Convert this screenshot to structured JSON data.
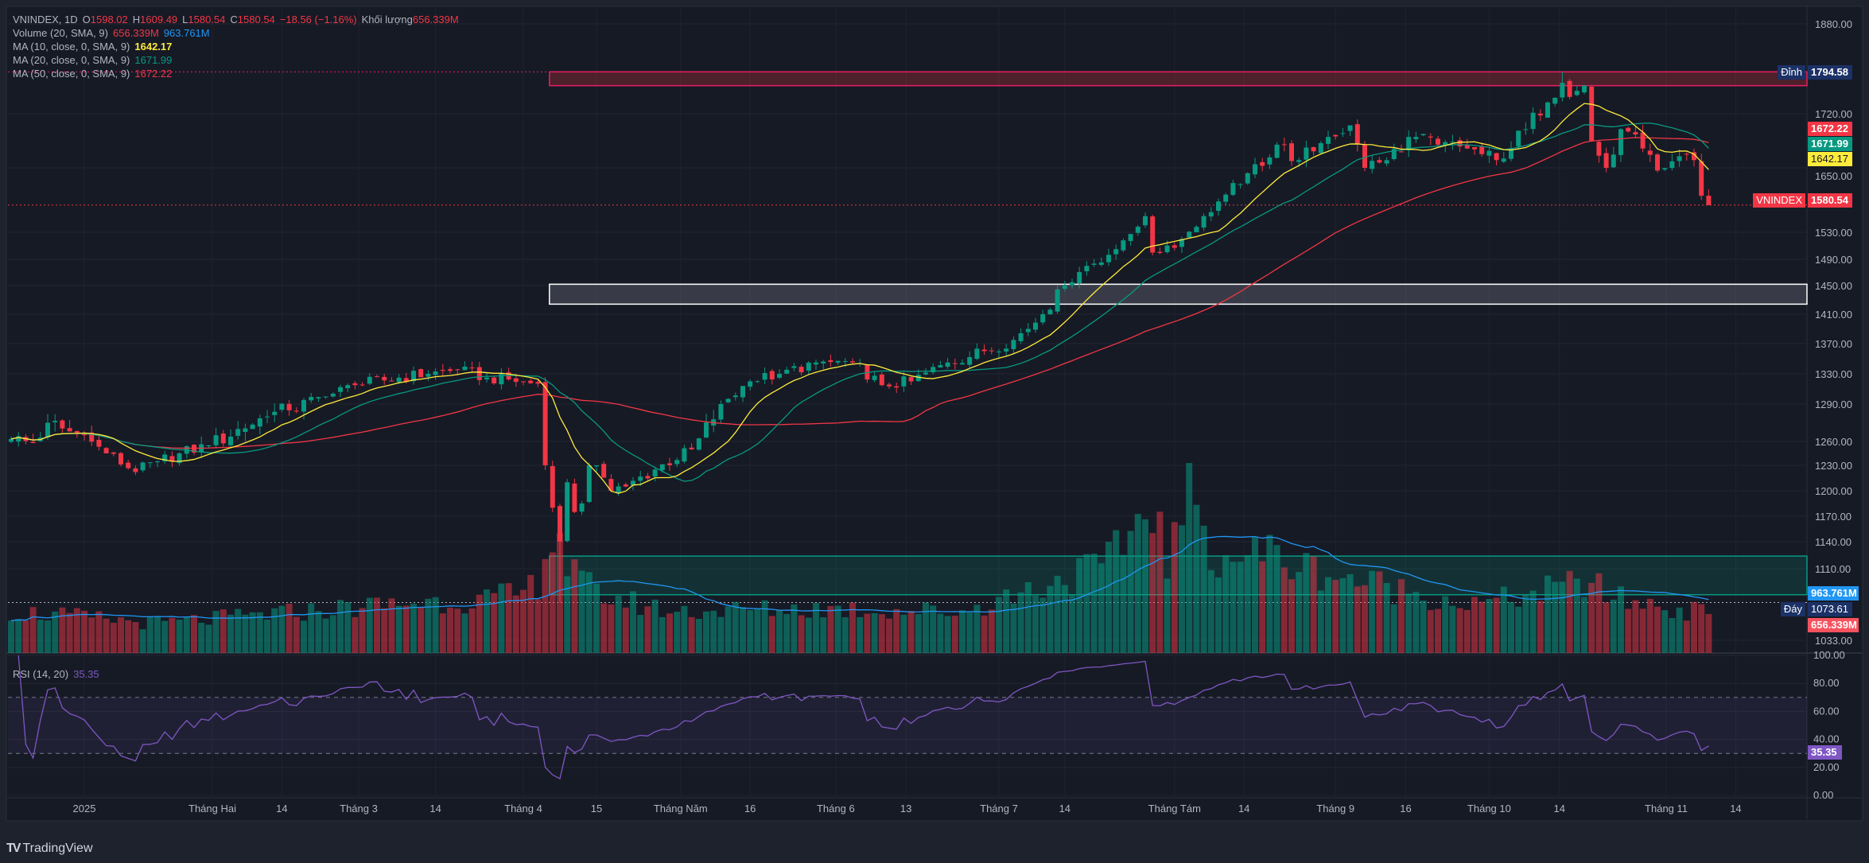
{
  "legend": {
    "symbol": "VNINDEX, 1D",
    "o_label": "O",
    "open": "1598.02",
    "h_label": "H",
    "high": "1609.49",
    "l_label": "L",
    "low": "1580.54",
    "c_label": "C",
    "close": "1580.54",
    "change": "−18.56 (−1.16%)",
    "volume_label": "Khối lượng",
    "volume": "656.339M",
    "vol_ind": "Volume (20, SMA, 9)",
    "vol_val": "656.339M",
    "vol_sma": "963.761M",
    "ma10": "MA (10, close, 0, SMA, 9)",
    "ma10_val": "1642.17",
    "ma20": "MA (20, close, 0, SMA, 9)",
    "ma20_val": "1671.99",
    "ma50": "MA (50, close, 0, SMA, 9)",
    "ma50_val": "1672.22",
    "rsi": "RSI (14, 20)",
    "rsi_val": "35.35"
  },
  "price_labels": {
    "peak_tag": "Đỉnh",
    "peak": "1794.58",
    "ma50": "1672.22",
    "ma20": "1671.99",
    "ma10": "1642.17",
    "symbol_tag": "VNINDEX",
    "last": "1580.54",
    "vol_sma": "963.761M",
    "bottom_tag": "Đáy",
    "bottom": "1073.61",
    "vol": "656.339M",
    "rsi": "35.35"
  },
  "colors": {
    "up": "#089981",
    "down": "#f23645",
    "ma10": "#ffeb3b",
    "ma20": "#089981",
    "ma50": "#f23645",
    "vol_sma": "#2196f3",
    "rsi": "#7e57c2"
  },
  "brand": "TradingView",
  "chart_data": {
    "type": "candlestick",
    "title": "VNINDEX, 1D",
    "price_ticks": [
      "1880.00",
      "1720.00",
      "1650.00",
      "1530.00",
      "1490.00",
      "1450.00",
      "1410.00",
      "1370.00",
      "1330.00",
      "1290.00",
      "1260.00",
      "1230.00",
      "1200.00",
      "1170.00",
      "1140.00",
      "1110.00",
      "1033.00"
    ],
    "rsi_ticks": [
      "100.00",
      "80.00",
      "60.00",
      "40.00",
      "20.00",
      "0.00"
    ],
    "rsi_bands": [
      70,
      30
    ],
    "x_labels": [
      {
        "label": "2025",
        "bar": 10
      },
      {
        "label": "Tháng Hai",
        "bar": 27.5
      },
      {
        "label": "14",
        "bar": 37
      },
      {
        "label": "Tháng 3",
        "bar": 47.5
      },
      {
        "label": "14",
        "bar": 58
      },
      {
        "label": "Tháng 4",
        "bar": 70
      },
      {
        "label": "15",
        "bar": 80
      },
      {
        "label": "Tháng Năm",
        "bar": 91.5
      },
      {
        "label": "16",
        "bar": 101
      },
      {
        "label": "Tháng 6",
        "bar": 112.7
      },
      {
        "label": "13",
        "bar": 122.3
      },
      {
        "label": "Tháng 7",
        "bar": 135
      },
      {
        "label": "14",
        "bar": 144
      },
      {
        "label": "Tháng Tám",
        "bar": 159
      },
      {
        "label": "14",
        "bar": 168.5
      },
      {
        "label": "Tháng 9",
        "bar": 181
      },
      {
        "label": "16",
        "bar": 190.6
      },
      {
        "label": "Tháng 10",
        "bar": 202
      },
      {
        "label": "14",
        "bar": 211.6
      },
      {
        "label": "Tháng 11",
        "bar": 226.2
      },
      {
        "label": "14",
        "bar": 235.7
      }
    ],
    "bar_count": 233,
    "close_waypoints": [
      [
        0,
        1262
      ],
      [
        3,
        1258
      ],
      [
        5,
        1275
      ],
      [
        8,
        1268
      ],
      [
        10,
        1265
      ],
      [
        13,
        1245
      ],
      [
        17,
        1222
      ],
      [
        20,
        1235
      ],
      [
        23,
        1245
      ],
      [
        27,
        1255
      ],
      [
        31,
        1270
      ],
      [
        35,
        1280
      ],
      [
        38,
        1285
      ],
      [
        43,
        1300
      ],
      [
        47,
        1315
      ],
      [
        53,
        1325
      ],
      [
        57,
        1330
      ],
      [
        61,
        1335
      ],
      [
        65,
        1325
      ],
      [
        70,
        1320
      ],
      [
        72,
        1317
      ],
      [
        73,
        1230
      ],
      [
        74,
        1180
      ],
      [
        75,
        1140
      ],
      [
        76,
        1210
      ],
      [
        77,
        1175
      ],
      [
        78,
        1185
      ],
      [
        79,
        1230
      ],
      [
        80,
        1230
      ],
      [
        82,
        1200
      ],
      [
        84,
        1205
      ],
      [
        88,
        1225
      ],
      [
        93,
        1250
      ],
      [
        97,
        1290
      ],
      [
        101,
        1320
      ],
      [
        105,
        1330
      ],
      [
        110,
        1345
      ],
      [
        115,
        1345
      ],
      [
        119,
        1315
      ],
      [
        123,
        1320
      ],
      [
        128,
        1345
      ],
      [
        133,
        1360
      ],
      [
        137,
        1375
      ],
      [
        141,
        1410
      ],
      [
        144,
        1450
      ],
      [
        147,
        1480
      ],
      [
        151,
        1505
      ],
      [
        155,
        1560
      ],
      [
        156,
        1500
      ],
      [
        160,
        1520
      ],
      [
        163,
        1560
      ],
      [
        166,
        1600
      ],
      [
        169,
        1640
      ],
      [
        173,
        1680
      ],
      [
        176,
        1660
      ],
      [
        180,
        1690
      ],
      [
        183,
        1705
      ],
      [
        185,
        1650
      ],
      [
        188,
        1660
      ],
      [
        191,
        1690
      ],
      [
        195,
        1680
      ],
      [
        199,
        1675
      ],
      [
        203,
        1660
      ],
      [
        207,
        1700
      ],
      [
        210,
        1740
      ],
      [
        212,
        1775
      ],
      [
        213,
        1750
      ],
      [
        215,
        1770
      ],
      [
        216,
        1685
      ],
      [
        218,
        1650
      ],
      [
        220,
        1700
      ],
      [
        223,
        1675
      ],
      [
        225,
        1645
      ],
      [
        228,
        1665
      ],
      [
        230,
        1660
      ],
      [
        231,
        1598.02
      ],
      [
        232,
        1580.54
      ]
    ],
    "volume_waypoints_m": [
      [
        0,
        700
      ],
      [
        20,
        500
      ],
      [
        40,
        700
      ],
      [
        55,
        850
      ],
      [
        65,
        900
      ],
      [
        70,
        1000
      ],
      [
        72,
        1200
      ],
      [
        73,
        1900
      ],
      [
        74,
        1800
      ],
      [
        75,
        2000
      ],
      [
        76,
        1500
      ],
      [
        77,
        1300
      ],
      [
        80,
        1000
      ],
      [
        90,
        700
      ],
      [
        110,
        750
      ],
      [
        130,
        700
      ],
      [
        140,
        1100
      ],
      [
        150,
        1500
      ],
      [
        156,
        2600
      ],
      [
        158,
        1500
      ],
      [
        161,
        2600
      ],
      [
        165,
        1600
      ],
      [
        172,
        1700
      ],
      [
        175,
        1500
      ],
      [
        185,
        1200
      ],
      [
        200,
        800
      ],
      [
        210,
        1050
      ],
      [
        215,
        1200
      ],
      [
        220,
        900
      ],
      [
        232,
        656.339
      ]
    ],
    "last_bar": {
      "open": 1598.02,
      "high": 1609.49,
      "low": 1580.54,
      "close": 1580.54,
      "volume_m": 656.339
    },
    "peak": {
      "bar": 212,
      "value": 1794.58
    },
    "bottom": {
      "bar": 75,
      "value": 1073.61
    },
    "zones": {
      "resistance": [
        1770,
        1794.58
      ],
      "support": [
        1424,
        1452
      ],
      "volume_box": [
        1082,
        1124
      ],
      "start_bar": 74
    }
  }
}
